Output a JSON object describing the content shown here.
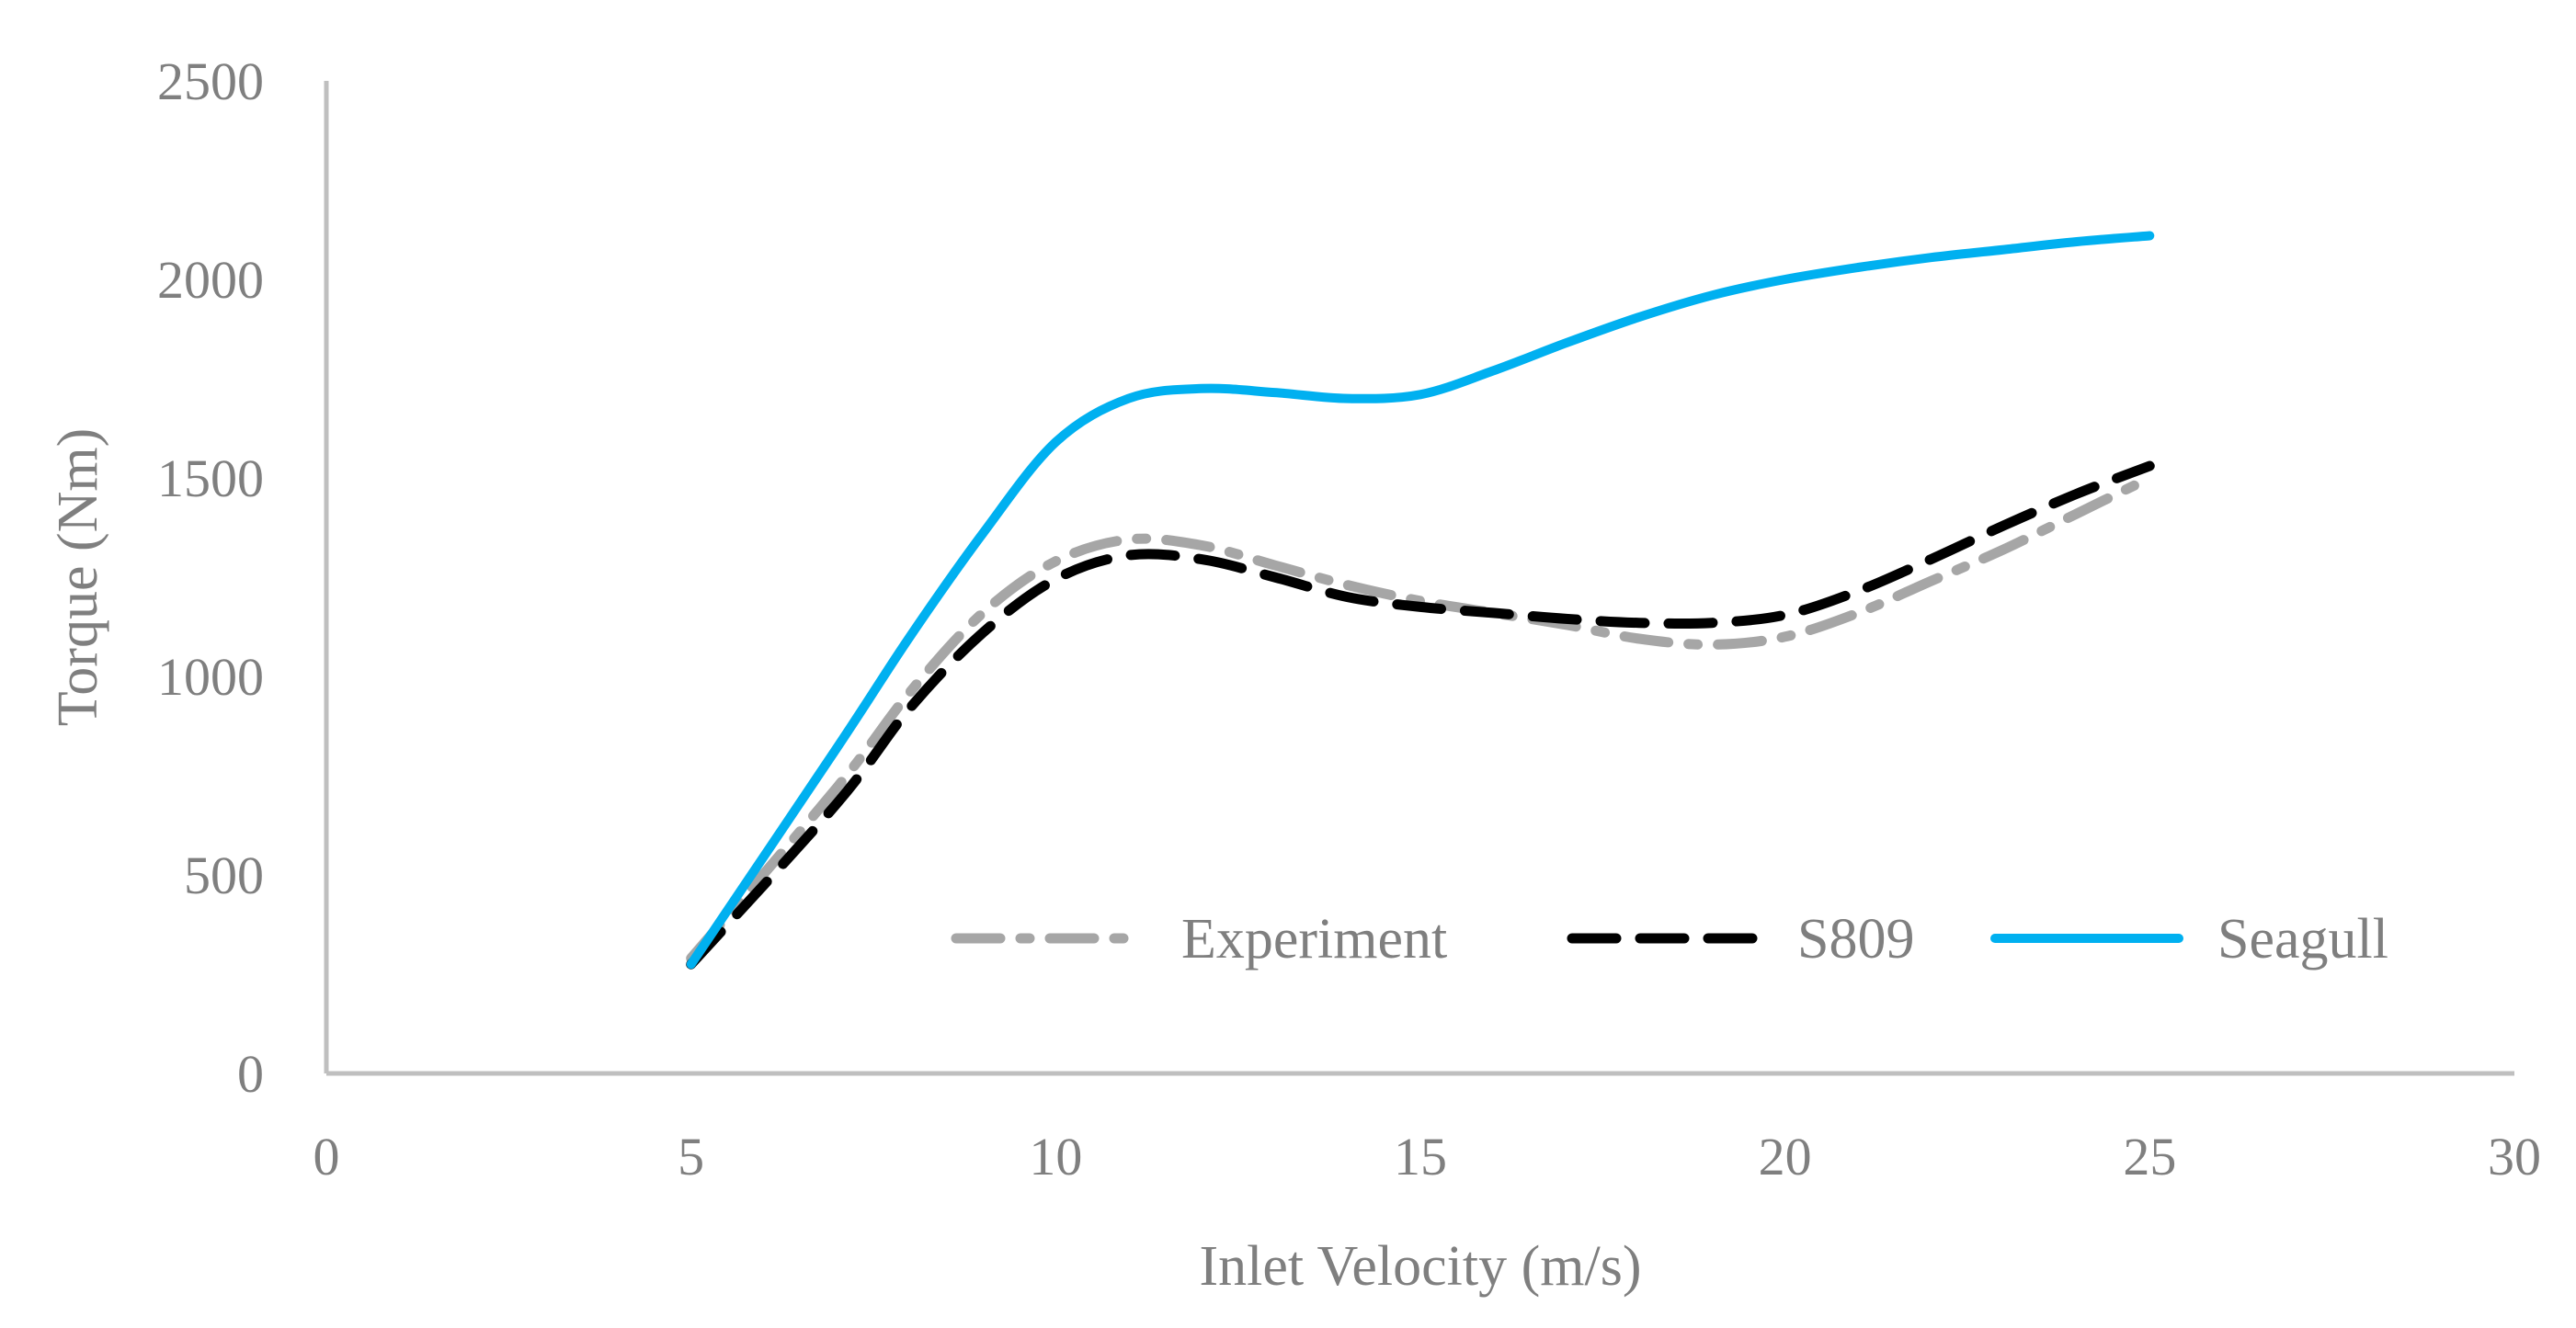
{
  "chart_data": {
    "type": "line",
    "title": "",
    "xlabel": "Inlet Velocity (m/s)",
    "ylabel": "Torque (Nm)",
    "xlim": [
      0,
      30
    ],
    "ylim": [
      0,
      2500
    ],
    "x_ticks": [
      0,
      5,
      10,
      15,
      20,
      25,
      30
    ],
    "y_ticks": [
      0,
      500,
      1000,
      1500,
      2000,
      2500
    ],
    "x_tick_labels": [
      "0",
      "5",
      "10",
      "15",
      "20",
      "25",
      "30"
    ],
    "y_tick_labels": [
      "0",
      "500",
      "1000",
      "1500",
      "2000",
      "2500"
    ],
    "grid": false,
    "legend_position": "bottom-right",
    "series": [
      {
        "name": "Experiment",
        "style": "dash-dot",
        "color": "#a6a6a6",
        "x": [
          5,
          7,
          8,
          9,
          10,
          11,
          12,
          13,
          14,
          15,
          16,
          17,
          18,
          19,
          20,
          21,
          22,
          23,
          24,
          25
        ],
        "values": [
          290,
          720,
          960,
          1160,
          1290,
          1345,
          1330,
          1280,
          1230,
          1190,
          1160,
          1130,
          1095,
          1080,
          1100,
          1160,
          1240,
          1320,
          1410,
          1500
        ]
      },
      {
        "name": "S809",
        "style": "dash",
        "color": "#000000",
        "x": [
          5,
          7,
          8,
          9,
          10,
          11,
          12,
          13,
          14,
          15,
          16,
          17,
          18,
          19,
          20,
          21,
          22,
          23,
          24,
          25
        ],
        "values": [
          275,
          680,
          920,
          1110,
          1245,
          1305,
          1295,
          1250,
          1200,
          1175,
          1160,
          1145,
          1135,
          1135,
          1155,
          1215,
          1295,
          1380,
          1460,
          1530
        ]
      },
      {
        "name": "Seagull",
        "style": "solid",
        "color": "#00b0f0",
        "x": [
          5,
          7,
          8,
          9,
          10,
          11,
          12,
          13,
          14,
          15,
          16,
          17,
          18,
          19,
          20,
          21,
          22,
          23,
          24,
          25
        ],
        "values": [
          275,
          820,
          1100,
          1360,
          1590,
          1700,
          1725,
          1715,
          1700,
          1710,
          1770,
          1840,
          1905,
          1960,
          2000,
          2030,
          2055,
          2075,
          2095,
          2110
        ]
      }
    ]
  }
}
